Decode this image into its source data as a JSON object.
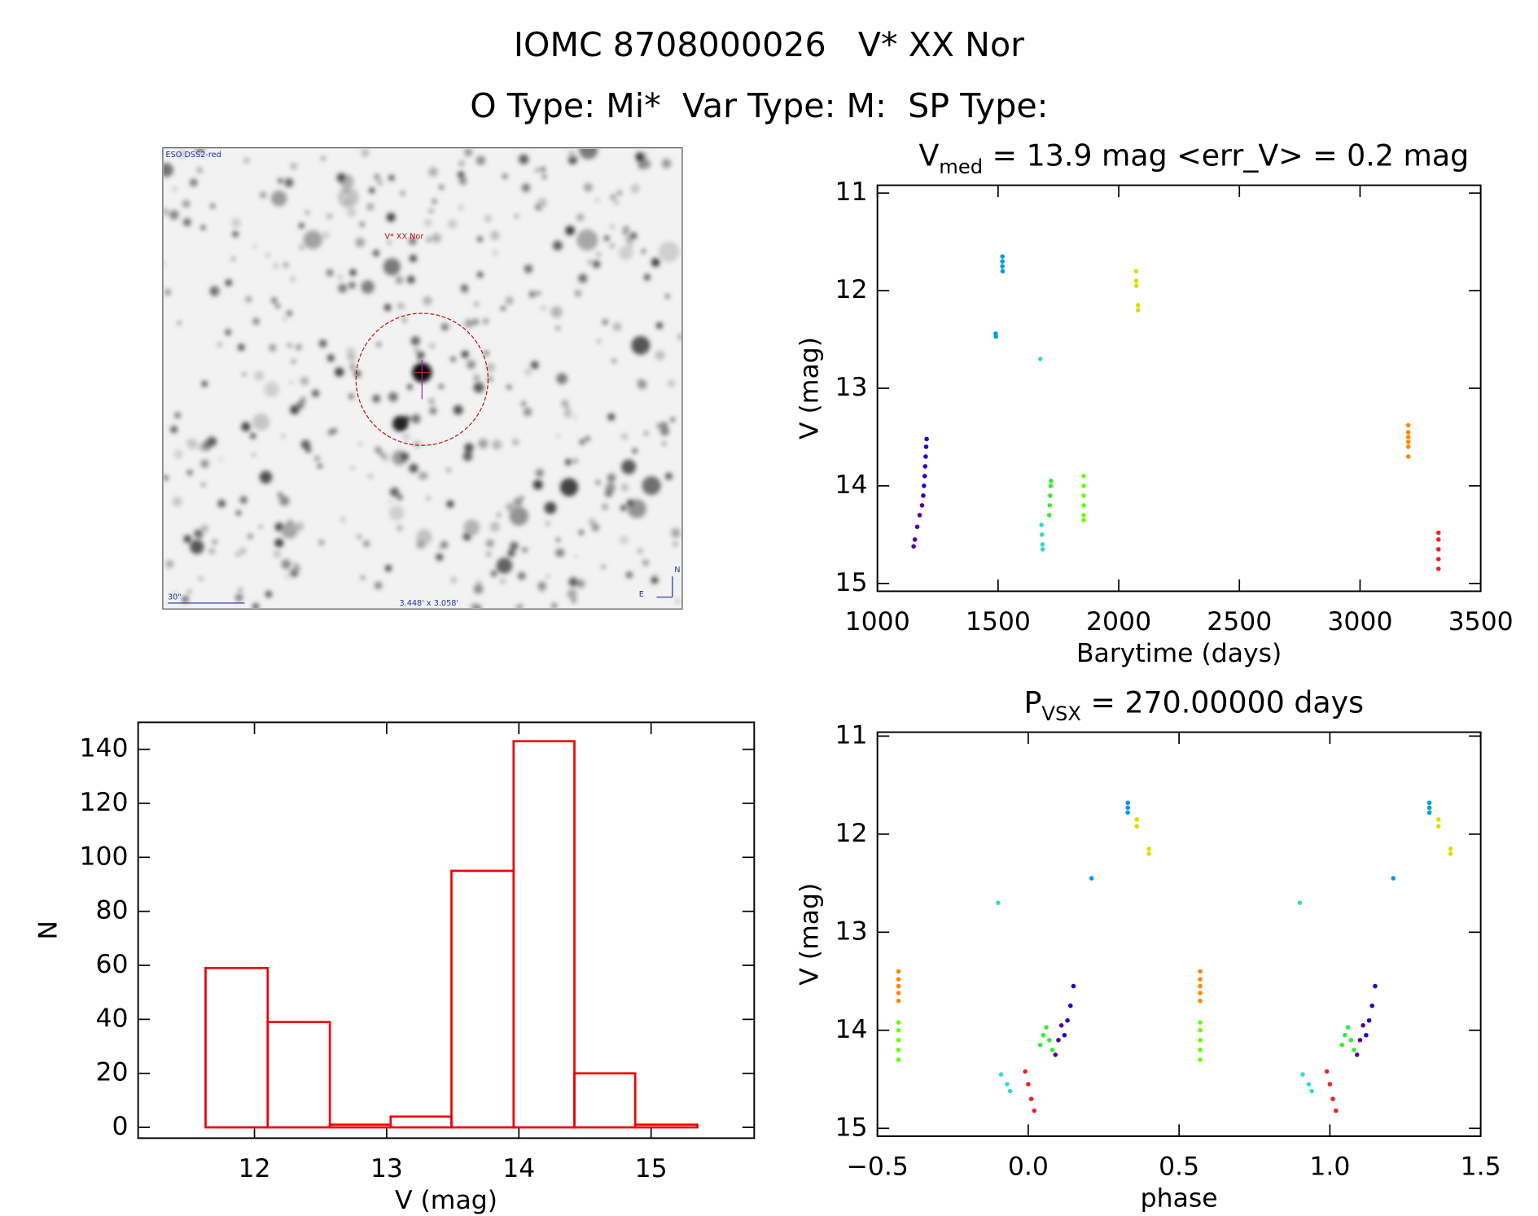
{
  "header": {
    "title": "IOMC 8708000026   V* XX Nor",
    "subtitle": "O Type: Mi*  Var Type: M:  SP Type:"
  },
  "image": {
    "source": "ESO DSS2-red",
    "target": "V* XX Nor",
    "scale": "30\"",
    "fov": "3.448' x 3.058'",
    "north": "N",
    "east": "E"
  },
  "chart_data": [
    {
      "type": "scatter",
      "title": {
        "main": "V",
        "sub": "med",
        "rest": " = 13.9 mag <err_V> = 0.2 mag"
      },
      "xlabel": "Barytime (days)",
      "ylabel": "V (mag)",
      "xlim": [
        1000,
        3500
      ],
      "ylim": [
        15.08,
        10.92
      ],
      "xticks": [
        1000,
        1500,
        2000,
        2500,
        3000,
        3500
      ],
      "yticks": [
        11,
        12,
        13,
        14,
        15
      ],
      "series": [
        {
          "color": "#550099",
          "x": [
            1150,
            1155,
            1165,
            1175,
            1185
          ],
          "y": [
            14.62,
            14.55,
            14.42,
            14.3,
            14.2
          ]
        },
        {
          "color": "#2200cc",
          "x": [
            1190,
            1193,
            1196,
            1198,
            1200,
            1202,
            1204
          ],
          "y": [
            14.1,
            14.0,
            13.9,
            13.8,
            13.7,
            13.6,
            13.52
          ]
        },
        {
          "color": "#0099ee",
          "x": [
            1490,
            1491,
            1518,
            1518,
            1518,
            1519
          ],
          "y": [
            12.44,
            12.47,
            11.65,
            11.7,
            11.75,
            11.8
          ]
        },
        {
          "color": "#33ddcc",
          "x": [
            1675,
            1680,
            1682,
            1684,
            1685
          ],
          "y": [
            12.7,
            14.4,
            14.5,
            14.6,
            14.65
          ]
        },
        {
          "color": "#33ee33",
          "x": [
            1712,
            1714,
            1716,
            1718,
            1719
          ],
          "y": [
            14.3,
            14.2,
            14.1,
            14.0,
            13.95
          ]
        },
        {
          "color": "#66ff00",
          "x": [
            1855,
            1855,
            1855,
            1855,
            1855,
            1855
          ],
          "y": [
            13.9,
            14.0,
            14.1,
            14.2,
            14.3,
            14.35
          ]
        },
        {
          "color": "#dddd00",
          "x": [
            2072,
            2072,
            2073,
            2080,
            2080
          ],
          "y": [
            11.8,
            11.9,
            11.95,
            12.15,
            12.2
          ]
        },
        {
          "color": "#ff8800",
          "x": [
            3200,
            3200,
            3200,
            3200,
            3200,
            3200
          ],
          "y": [
            13.38,
            13.45,
            13.5,
            13.55,
            13.6,
            13.7
          ]
        },
        {
          "color": "#ee2222",
          "x": [
            3325,
            3325,
            3325,
            3325,
            3325
          ],
          "y": [
            14.48,
            14.55,
            14.65,
            14.75,
            14.85
          ]
        }
      ]
    },
    {
      "type": "histogram",
      "xlabel": "V (mag)",
      "ylabel": "N",
      "color": "#ee0000",
      "bins": [
        11.63,
        12.1,
        12.57,
        13.03,
        13.49,
        13.96,
        14.42,
        14.88,
        15.35
      ],
      "counts": [
        59,
        39,
        1,
        4,
        95,
        143,
        20,
        1
      ],
      "xlim": [
        11.12,
        15.78
      ],
      "ylim": [
        -4,
        150
      ],
      "xticks": [
        12,
        13,
        14,
        15
      ],
      "yticks": [
        0,
        20,
        40,
        60,
        80,
        100,
        120,
        140
      ]
    },
    {
      "type": "scatter",
      "title": {
        "main": "P",
        "sub": "VSX",
        "rest": " = 270.00000 days"
      },
      "xlabel": "phase",
      "ylabel": "V (mag)",
      "xlim": [
        -0.5,
        1.5
      ],
      "ylim": [
        15.08,
        10.96
      ],
      "xticks": [
        {
          "value": -0.5,
          "label": "−0.5"
        },
        {
          "value": 0,
          "label": "0.0"
        },
        {
          "value": 0.5,
          "label": "0.5"
        },
        {
          "value": 1,
          "label": "1.0"
        },
        {
          "value": 1.5,
          "label": "1.5"
        }
      ],
      "yticks": [
        11,
        12,
        13,
        14,
        15
      ],
      "series": [
        {
          "color": "#ff8800",
          "x": [
            -0.43,
            -0.43,
            -0.43,
            -0.43,
            -0.43,
            0.57,
            0.57,
            0.57,
            0.57,
            0.57
          ],
          "y": [
            13.4,
            13.48,
            13.55,
            13.62,
            13.7,
            13.4,
            13.48,
            13.55,
            13.62,
            13.7
          ]
        },
        {
          "color": "#66ff00",
          "x": [
            -0.43,
            -0.43,
            -0.43,
            -0.43,
            -0.43,
            0.57,
            0.57,
            0.57,
            0.57,
            0.57
          ],
          "y": [
            13.92,
            14.0,
            14.1,
            14.2,
            14.3,
            13.92,
            14.0,
            14.1,
            14.2,
            14.3
          ]
        },
        {
          "color": "#33ddcc",
          "x": [
            -0.1,
            -0.09,
            -0.07,
            -0.06,
            0.9,
            0.91,
            0.93,
            0.94
          ],
          "y": [
            12.7,
            14.45,
            14.55,
            14.62,
            12.7,
            14.45,
            14.55,
            14.62
          ]
        },
        {
          "color": "#ee2222",
          "x": [
            -0.01,
            0.0,
            0.01,
            0.02,
            0.99,
            1.0,
            1.01,
            1.02
          ],
          "y": [
            14.42,
            14.55,
            14.7,
            14.82,
            14.42,
            14.55,
            14.7,
            14.82
          ]
        },
        {
          "color": "#33ee33",
          "x": [
            0.04,
            0.05,
            0.06,
            0.07,
            0.08,
            1.04,
            1.05,
            1.06,
            1.07,
            1.08
          ],
          "y": [
            14.15,
            14.05,
            13.97,
            14.1,
            14.2,
            14.15,
            14.05,
            13.97,
            14.1,
            14.2
          ]
        },
        {
          "color": "#550099",
          "x": [
            0.09,
            0.1,
            0.11,
            1.09,
            1.1,
            1.11
          ],
          "y": [
            14.25,
            14.1,
            13.95,
            14.25,
            14.1,
            13.95
          ]
        },
        {
          "color": "#2200cc",
          "x": [
            0.12,
            0.13,
            0.14,
            0.15,
            1.12,
            1.13,
            1.14,
            1.15
          ],
          "y": [
            14.05,
            13.9,
            13.75,
            13.55,
            14.05,
            13.9,
            13.75,
            13.55
          ]
        },
        {
          "color": "#0099ee",
          "x": [
            0.21,
            0.33,
            0.33,
            0.33,
            1.21,
            1.33,
            1.33,
            1.33
          ],
          "y": [
            12.45,
            11.68,
            11.73,
            11.78,
            12.45,
            11.68,
            11.73,
            11.78
          ]
        },
        {
          "color": "#dddd00",
          "x": [
            0.36,
            0.36,
            0.4,
            0.4,
            1.36,
            1.36,
            1.4,
            1.4
          ],
          "y": [
            11.85,
            11.92,
            12.15,
            12.2,
            11.85,
            11.92,
            12.15,
            12.2
          ]
        }
      ]
    }
  ]
}
